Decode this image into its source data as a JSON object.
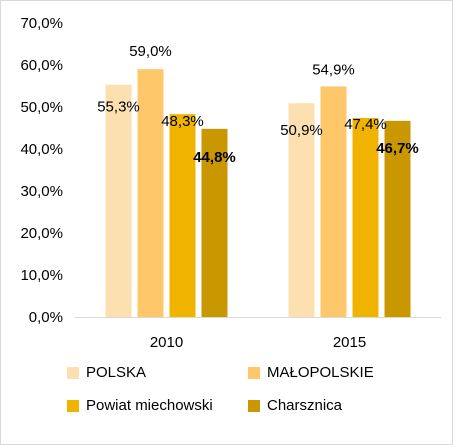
{
  "chart_data": {
    "type": "bar",
    "title": "",
    "xlabel": "",
    "ylabel": "",
    "ylim": [
      0,
      70
    ],
    "y_ticks": [
      "0,0%",
      "10,0%",
      "20,0%",
      "30,0%",
      "40,0%",
      "50,0%",
      "60,0%",
      "70,0%"
    ],
    "y_tick_values": [
      0,
      10,
      20,
      30,
      40,
      50,
      60,
      70
    ],
    "categories": [
      "2010",
      "2015"
    ],
    "series": [
      {
        "name": "POLSKA",
        "color": "#fde0b0",
        "values": [
          55.3,
          50.9
        ],
        "labels": [
          "55,3%",
          "50,9%"
        ],
        "bold": false
      },
      {
        "name": "MAŁOPOLSKIE",
        "color": "#fdc76a",
        "values": [
          59.0,
          54.9
        ],
        "labels": [
          "59,0%",
          "54,9%"
        ],
        "bold": false
      },
      {
        "name": "Powiat miechowski",
        "color": "#f0b400",
        "values": [
          48.3,
          47.4
        ],
        "labels": [
          "48,3%",
          "47,4%"
        ],
        "bold": false
      },
      {
        "name": "Charsznica",
        "color": "#c99700",
        "values": [
          44.8,
          46.7
        ],
        "labels": [
          "44,8%",
          "46,7%"
        ],
        "bold": true
      }
    ],
    "grid": false,
    "legend_position": "bottom"
  }
}
